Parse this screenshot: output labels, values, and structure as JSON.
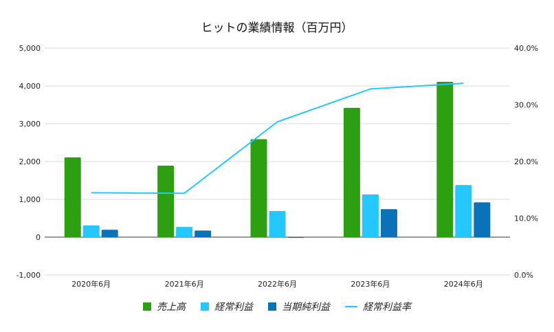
{
  "chart_data": {
    "type": "bar",
    "title": "ヒットの業績情報（百万円）",
    "categories": [
      "2020年6月",
      "2021年6月",
      "2022年6月",
      "2023年6月",
      "2024年6月"
    ],
    "series": [
      {
        "name": "売上高",
        "type": "bar",
        "axis": "left",
        "color": "#2ca010",
        "values": [
          2110,
          1890,
          2590,
          3420,
          4110
        ]
      },
      {
        "name": "経常利益",
        "type": "bar",
        "axis": "left",
        "color": "#24c8ff",
        "values": [
          310,
          270,
          690,
          1130,
          1380
        ]
      },
      {
        "name": "当期純利益",
        "type": "bar",
        "axis": "left",
        "color": "#0a72b8",
        "values": [
          195,
          175,
          -20,
          740,
          920
        ]
      },
      {
        "name": "経常利益率",
        "type": "line",
        "axis": "right",
        "color": "#24c8ff",
        "values": [
          14.5,
          14.4,
          27.0,
          32.8,
          33.8
        ]
      }
    ],
    "y_left": {
      "min": -1000,
      "max": 5000,
      "ticks": [
        "-1,000",
        "0",
        "1,000",
        "2,000",
        "3,000",
        "4,000",
        "5,000"
      ]
    },
    "y_right": {
      "min": 0,
      "max": 40,
      "ticks": [
        "0.0%",
        "10.0%",
        "20.0%",
        "30.0%",
        "40.0%"
      ]
    },
    "grid": true,
    "legend_position": "bottom"
  }
}
